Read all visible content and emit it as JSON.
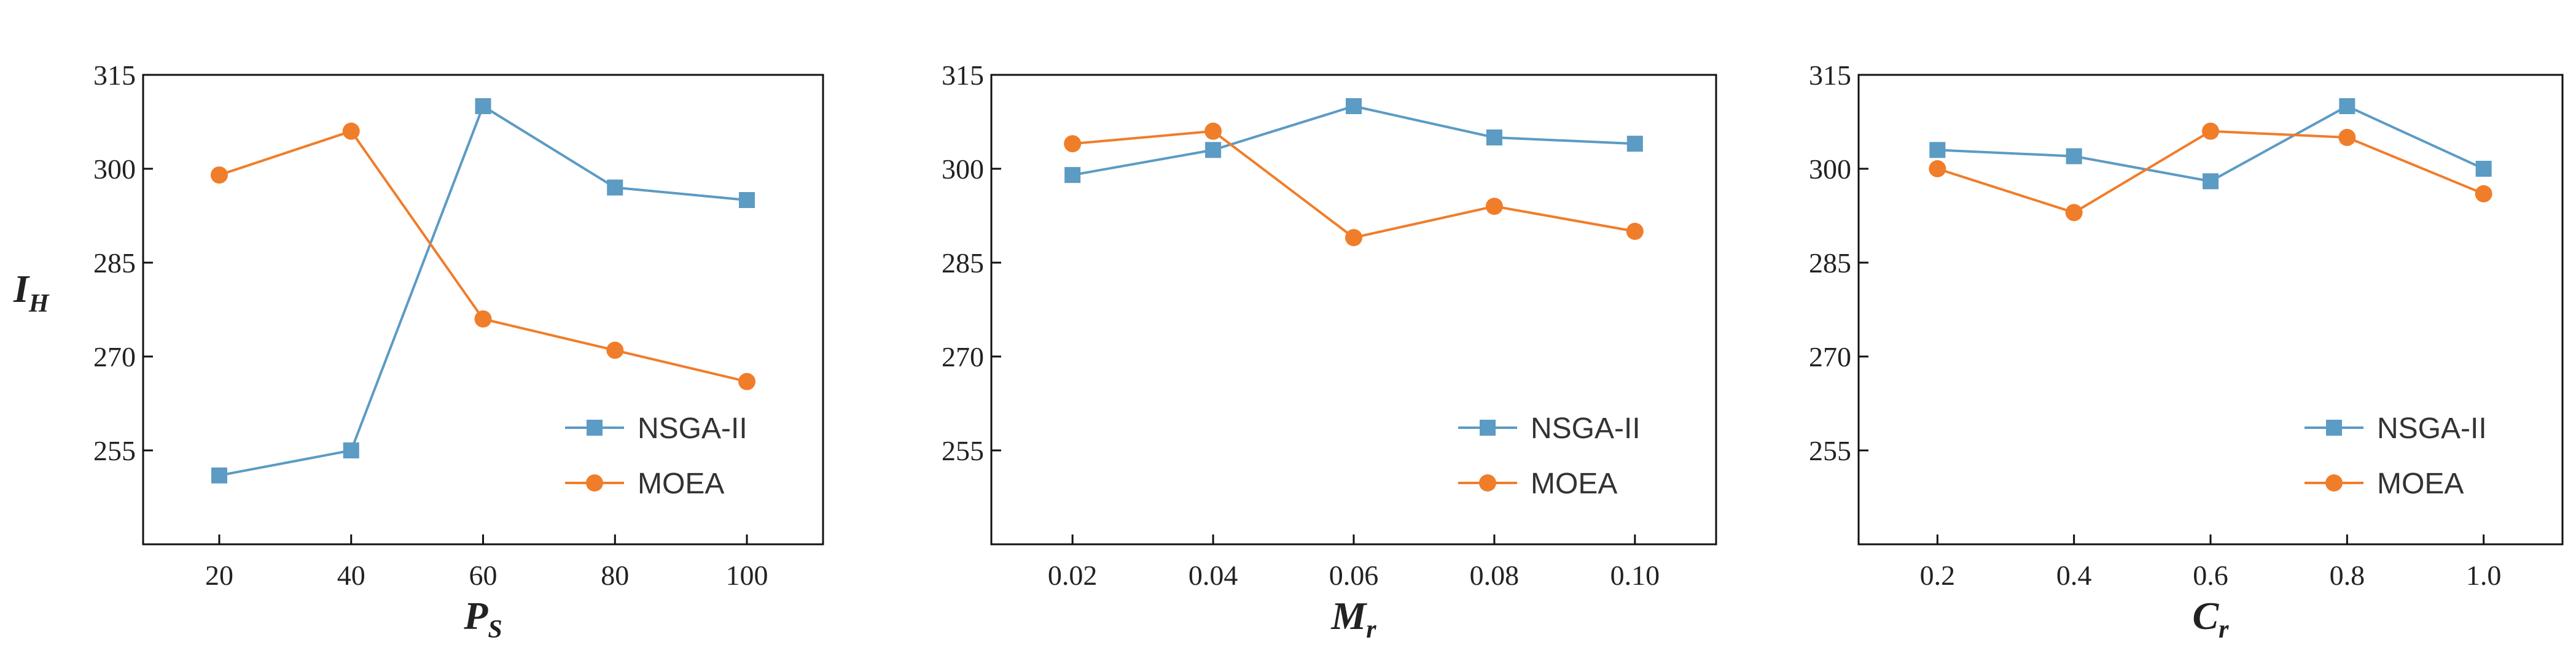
{
  "colors": {
    "nsga": "#5b9bc4",
    "moea": "#f07d2a"
  },
  "y_axis": {
    "label": "I",
    "label_sub": "H"
  },
  "chart_data": [
    {
      "type": "line",
      "xlabel": "P",
      "xlabel_sub": "S",
      "x_ticks": [
        "20",
        "40",
        "60",
        "80",
        "100"
      ],
      "ylim": [
        240,
        315
      ],
      "y_ticks": [
        255,
        270,
        285,
        300,
        315
      ],
      "legend_position": "bottom-right",
      "series": [
        {
          "name": "NSGA-II",
          "marker": "square",
          "values": [
            251,
            255,
            310,
            297,
            295
          ]
        },
        {
          "name": "MOEA",
          "marker": "circle",
          "values": [
            299,
            306,
            276,
            271,
            266
          ]
        }
      ]
    },
    {
      "type": "line",
      "xlabel": "M",
      "xlabel_sub": "r",
      "x_ticks": [
        "0.02",
        "0.04",
        "0.06",
        "0.08",
        "0.10"
      ],
      "ylim": [
        240,
        315
      ],
      "y_ticks": [
        255,
        270,
        285,
        300,
        315
      ],
      "legend_position": "bottom-right",
      "series": [
        {
          "name": "NSGA-II",
          "marker": "square",
          "values": [
            299,
            303,
            310,
            305,
            304
          ]
        },
        {
          "name": "MOEA",
          "marker": "circle",
          "values": [
            304,
            306,
            289,
            294,
            290
          ]
        }
      ]
    },
    {
      "type": "line",
      "xlabel": "C",
      "xlabel_sub": "r",
      "x_ticks": [
        "0.2",
        "0.4",
        "0.6",
        "0.8",
        "1.0"
      ],
      "ylim": [
        240,
        315
      ],
      "y_ticks": [
        255,
        270,
        285,
        300,
        315
      ],
      "legend_position": "bottom-right",
      "series": [
        {
          "name": "NSGA-II",
          "marker": "square",
          "values": [
            303,
            302,
            298,
            310,
            300
          ]
        },
        {
          "name": "MOEA",
          "marker": "circle",
          "values": [
            300,
            293,
            306,
            305,
            296
          ]
        }
      ]
    }
  ]
}
